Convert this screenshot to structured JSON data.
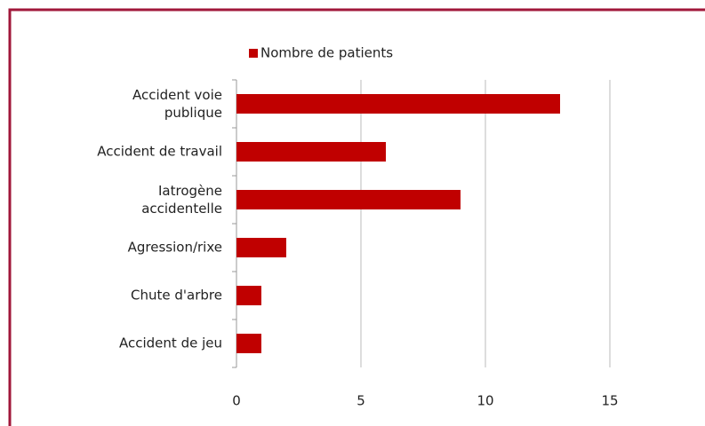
{
  "chart_data": {
    "type": "bar",
    "orientation": "horizontal",
    "categories": [
      "Accident voie publique",
      "Accident de travail",
      "Iatrogène accidentelle",
      "Agression/rixe",
      "Chute d'arbre",
      "Accident de jeu"
    ],
    "series": [
      {
        "name": "Nombre de patients",
        "color": "#c00000",
        "values": [
          13,
          6,
          9,
          2,
          1,
          1
        ]
      }
    ],
    "xlim": [
      0,
      15
    ],
    "xticks": [
      0,
      5,
      10,
      15
    ],
    "grid": true,
    "legend": "top"
  }
}
